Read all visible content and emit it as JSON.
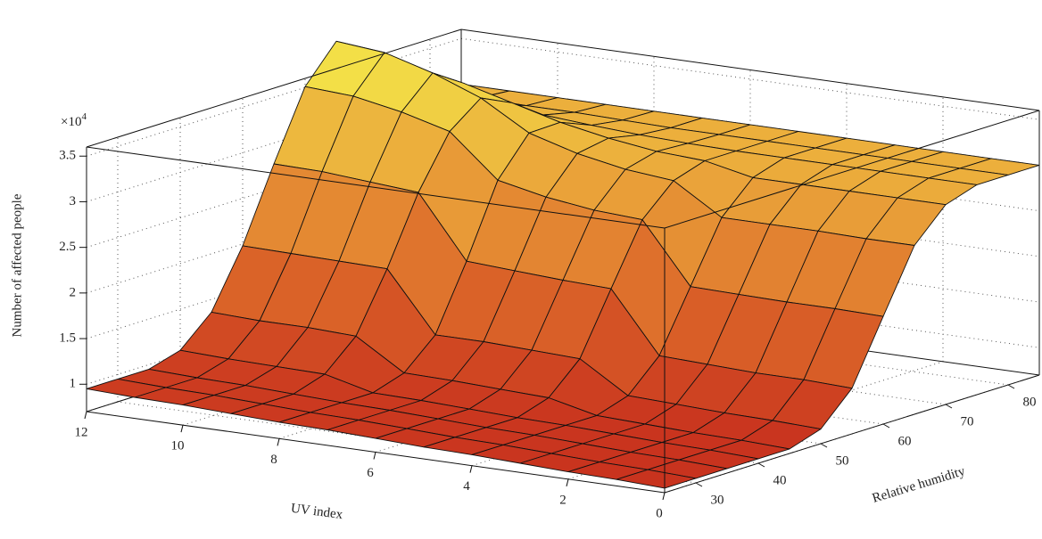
{
  "chart_data": {
    "type": "surface",
    "xlabel": "UV index",
    "ylabel": "Relative humidity",
    "zlabel": "Number of affected people",
    "z_multiplier_base": "×10",
    "z_multiplier_exponent": "4",
    "x": [
      0,
      1,
      2,
      3,
      4,
      5,
      6,
      7,
      8,
      9,
      10,
      11,
      12
    ],
    "y": [
      25,
      30,
      35,
      40,
      45,
      50,
      55,
      60,
      65,
      70,
      75,
      80,
      85
    ],
    "z": [
      [
        0.75,
        0.75,
        0.75,
        0.75,
        0.75,
        0.86,
        1.2,
        1.88,
        2.55,
        2.89,
        3,
        3,
        3
      ],
      [
        0.77,
        0.77,
        0.77,
        0.77,
        0.77,
        0.88,
        1.22,
        1.89,
        2.55,
        2.89,
        3,
        3,
        3
      ],
      [
        0.78,
        0.78,
        0.78,
        0.78,
        0.78,
        0.89,
        1.22,
        1.89,
        2.56,
        2.89,
        3,
        3,
        3
      ],
      [
        0.8,
        0.8,
        0.8,
        0.8,
        0.8,
        0.91,
        1.24,
        1.9,
        2.56,
        2.89,
        3,
        3,
        3
      ],
      [
        0.82,
        0.82,
        0.82,
        0.82,
        0.82,
        0.93,
        1.26,
        1.91,
        2.56,
        2.89,
        3,
        3,
        3
      ],
      [
        0.83,
        0.83,
        0.83,
        0.83,
        0.94,
        1.26,
        1.92,
        2.57,
        2.89,
        3,
        3,
        3,
        3
      ],
      [
        0.85,
        0.85,
        0.85,
        0.85,
        0.96,
        1.28,
        1.94,
        2.6,
        2.94,
        3.03,
        3.01,
        3,
        3
      ],
      [
        0.87,
        0.87,
        0.87,
        0.87,
        0.98,
        1.3,
        1.97,
        2.67,
        3.04,
        3.1,
        3.03,
        3,
        3
      ],
      [
        0.88,
        0.88,
        0.88,
        0.88,
        0.99,
        1.3,
        2,
        2.78,
        3.19,
        3.2,
        3.06,
        3.01,
        3
      ],
      [
        0.9,
        0.9,
        0.9,
        1.01,
        1.32,
        1.95,
        2.68,
        3.24,
        3.5,
        3.34,
        3.1,
        3.02,
        3
      ],
      [
        0.92,
        0.92,
        0.92,
        1.02,
        1.34,
        1.96,
        2.72,
        3.38,
        3.7,
        3.48,
        3.14,
        3.02,
        3
      ],
      [
        0.93,
        0.93,
        0.93,
        1.03,
        1.34,
        1.97,
        2.76,
        3.48,
        3.85,
        3.58,
        3.17,
        3.03,
        3
      ],
      [
        0.95,
        0.95,
        0.95,
        1.05,
        1.36,
        1.98,
        2.77,
        3.51,
        3.9,
        3.61,
        3.18,
        3.03,
        3
      ]
    ],
    "xlim": [
      0,
      12
    ],
    "ylim": [
      25,
      85
    ],
    "zlim": [
      0.7,
      3.6
    ],
    "xticks": [
      0,
      2,
      4,
      6,
      8,
      10,
      12
    ],
    "yticks": [
      30,
      40,
      50,
      60,
      70,
      80
    ],
    "zticks": [
      1,
      1.5,
      2,
      2.5,
      3,
      3.5
    ],
    "grid": true,
    "colormap": [
      "#c8321e",
      "#dd6a2a",
      "#eaa43a",
      "#f5ee4a"
    ]
  }
}
